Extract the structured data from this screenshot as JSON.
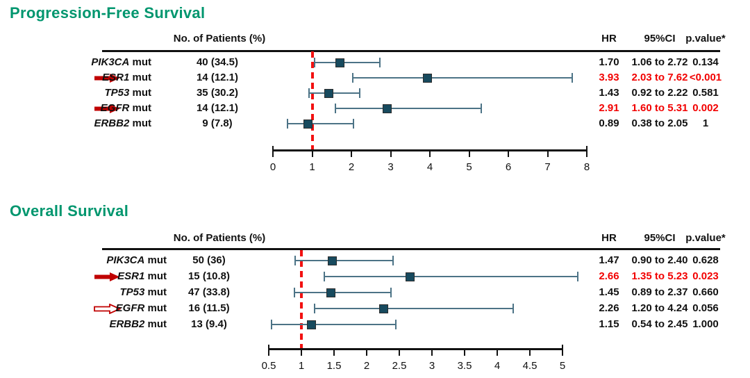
{
  "figure": {
    "colors": {
      "title_green": "#00966e",
      "significant_red": "#f20000",
      "arrow_red": "#c00000",
      "marker_navy": "#174a5e",
      "ci_line_slate": "#4c7386",
      "reference_line_red": "#f21111"
    }
  },
  "chart_data": [
    {
      "type": "scatter",
      "subtype": "forest-plot",
      "title": "Progression-Free Survival",
      "columns": {
        "patients": "No. of Patients (%)",
        "hr": "HR",
        "ci": "95%CI",
        "p": "p.value*"
      },
      "xlim": [
        0,
        8
      ],
      "x_ticks": [
        0,
        1,
        2,
        3,
        4,
        5,
        6,
        7,
        8
      ],
      "x_tick_labels": [
        "0",
        "1",
        "2",
        "3",
        "4",
        "5",
        "6",
        "7",
        "8"
      ],
      "ref_line": 1,
      "grid": false,
      "rows": [
        {
          "gene": "PIK3CA",
          "suffix": "mut",
          "n": "40 (34.5)",
          "hr": 1.7,
          "ci_low": 1.06,
          "ci_high": 2.72,
          "hr_label": "1.70",
          "ci_label": "1.06 to 2.72",
          "p_label": "0.134",
          "significant": false,
          "arrow": "none"
        },
        {
          "gene": "ESR1",
          "suffix": "mut",
          "n": "14 (12.1)",
          "hr": 3.93,
          "ci_low": 2.03,
          "ci_high": 7.62,
          "hr_label": "3.93",
          "ci_label": "2.03 to 7.62",
          "p_label": "<0.001",
          "significant": true,
          "arrow": "filled"
        },
        {
          "gene": "TP53",
          "suffix": "mut",
          "n": "35 (30.2)",
          "hr": 1.43,
          "ci_low": 0.92,
          "ci_high": 2.22,
          "hr_label": "1.43",
          "ci_label": "0.92 to 2.22",
          "p_label": "0.581",
          "significant": false,
          "arrow": "none"
        },
        {
          "gene": "EGFR",
          "suffix": "mut",
          "n": "14 (12.1)",
          "hr": 2.91,
          "ci_low": 1.6,
          "ci_high": 5.31,
          "hr_label": "2.91",
          "ci_label": "1.60 to 5.31",
          "p_label": "0.002",
          "significant": true,
          "arrow": "filled"
        },
        {
          "gene": "ERBB2",
          "suffix": "mut",
          "n": "9 (7.8)",
          "hr": 0.89,
          "ci_low": 0.38,
          "ci_high": 2.05,
          "hr_label": "0.89",
          "ci_label": "0.38 to 2.05",
          "p_label": "1",
          "significant": false,
          "arrow": "none"
        }
      ]
    },
    {
      "type": "scatter",
      "subtype": "forest-plot",
      "title": "Overall Survival",
      "columns": {
        "patients": "No. of Patients (%)",
        "hr": "HR",
        "ci": "95%CI",
        "p": "p.value*"
      },
      "xlim": [
        0.5,
        5
      ],
      "x_ticks": [
        0.5,
        1,
        1.5,
        2,
        2.5,
        3,
        3.5,
        4,
        4.5,
        5
      ],
      "x_tick_labels": [
        "0.5",
        "1",
        "1.5",
        "2",
        "2.5",
        "3",
        "3.5",
        "4",
        "4.5",
        "5"
      ],
      "ref_line": 1,
      "grid": false,
      "rows": [
        {
          "gene": "PIK3CA",
          "suffix": "mut",
          "n": "50 (36)",
          "hr": 1.47,
          "ci_low": 0.9,
          "ci_high": 2.4,
          "hr_label": "1.47",
          "ci_label": "0.90 to 2.40",
          "p_label": "0.628",
          "significant": false,
          "arrow": "none"
        },
        {
          "gene": "ESR1",
          "suffix": "mut",
          "n": "15 (10.8)",
          "hr": 2.66,
          "ci_low": 1.35,
          "ci_high": 5.23,
          "hr_label": "2.66",
          "ci_label": "1.35 to 5.23",
          "p_label": "0.023",
          "significant": true,
          "arrow": "filled"
        },
        {
          "gene": "TP53",
          "suffix": "mut",
          "n": "47 (33.8)",
          "hr": 1.45,
          "ci_low": 0.89,
          "ci_high": 2.37,
          "hr_label": "1.45",
          "ci_label": "0.89 to 2.37",
          "p_label": "0.660",
          "significant": false,
          "arrow": "none"
        },
        {
          "gene": "EGFR",
          "suffix": "mut",
          "n": "16 (11.5)",
          "hr": 2.26,
          "ci_low": 1.2,
          "ci_high": 4.24,
          "hr_label": "2.26",
          "ci_label": "1.20 to 4.24",
          "p_label": "0.056",
          "significant": false,
          "arrow": "hollow"
        },
        {
          "gene": "ERBB2",
          "suffix": "mut",
          "n": "13 (9.4)",
          "hr": 1.15,
          "ci_low": 0.54,
          "ci_high": 2.45,
          "hr_label": "1.15",
          "ci_label": "0.54 to 2.45",
          "p_label": "1.000",
          "significant": false,
          "arrow": "none"
        }
      ]
    }
  ]
}
